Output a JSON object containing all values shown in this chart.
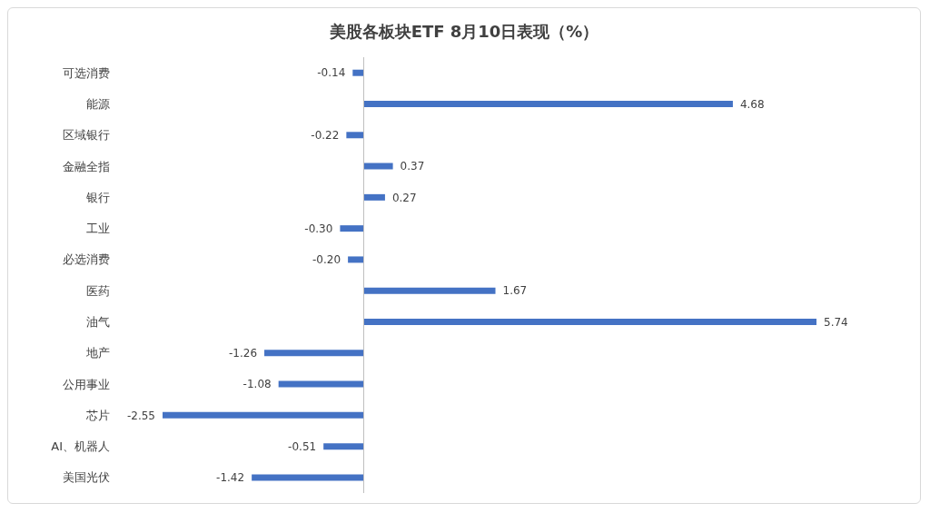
{
  "chart_data": {
    "type": "bar",
    "orientation": "horizontal",
    "title": "美股各板块ETF  8月10日表现（%）",
    "categories": [
      "可选消费",
      "能源",
      "区域银行",
      "金融全指",
      "银行",
      "工业",
      "必选消费",
      "医药",
      "油气",
      "地产",
      "公用事业",
      "芯片",
      "AI、机器人",
      "美国光伏"
    ],
    "values": [
      -0.14,
      4.68,
      -0.22,
      0.37,
      0.27,
      -0.3,
      -0.2,
      1.67,
      5.74,
      -1.26,
      -1.08,
      -2.55,
      -0.51,
      -1.42
    ],
    "value_labels": [
      "-0.14",
      "4.68",
      "-0.22",
      "0.37",
      "0.27",
      "-0.30",
      "-0.20",
      "1.67",
      "5.74",
      "-1.26",
      "-1.08",
      "-2.55",
      "-0.51",
      "-1.42"
    ],
    "color": "#4472c4",
    "grid": false,
    "legend": false
  }
}
